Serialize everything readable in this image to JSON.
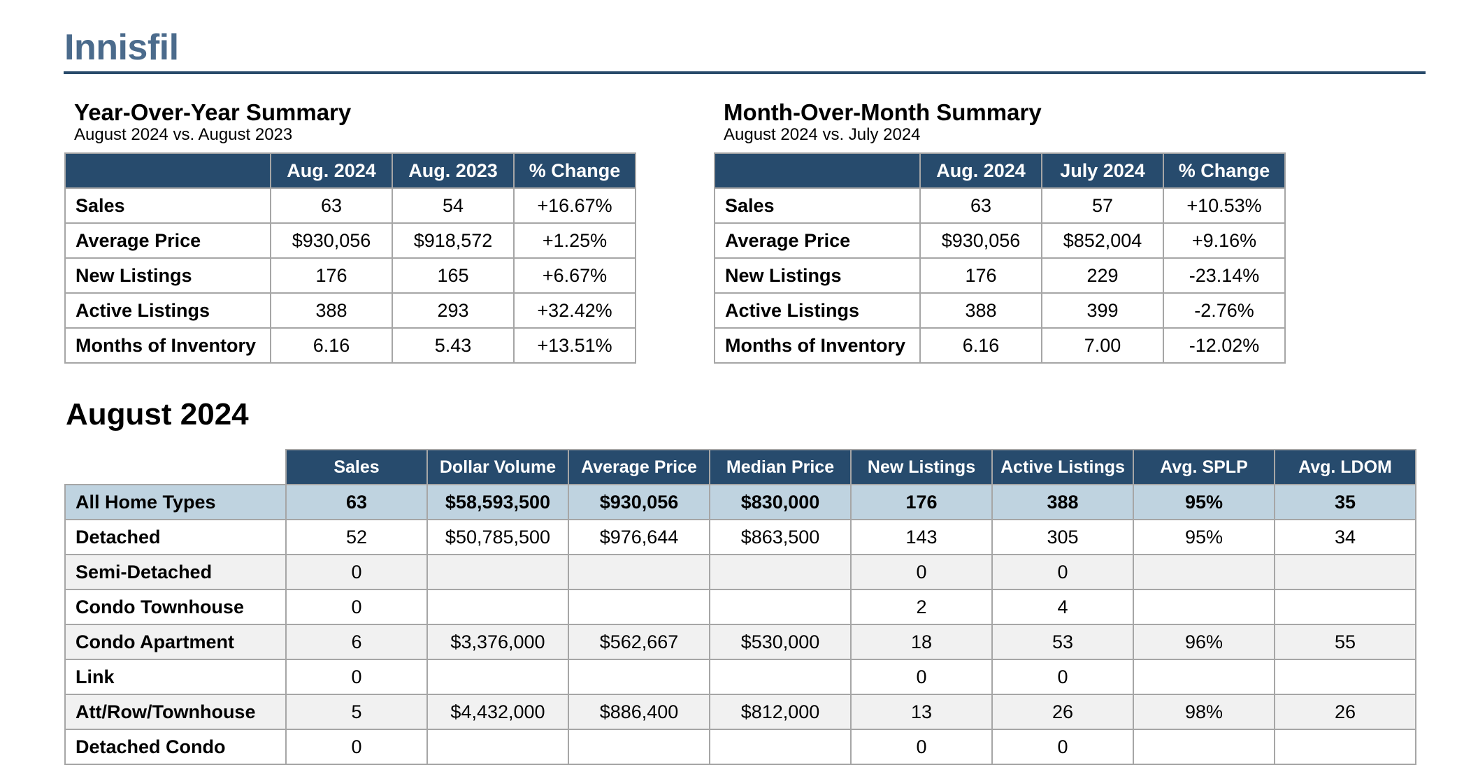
{
  "page": {
    "title": "Innisfil"
  },
  "yoy": {
    "heading": "Year-Over-Year Summary",
    "subheading": "August 2024 vs. August 2023",
    "columns": [
      "Aug. 2024",
      "Aug. 2023",
      "% Change"
    ],
    "rows": [
      {
        "label": "Sales",
        "values": [
          "63",
          "54",
          "+16.67%"
        ]
      },
      {
        "label": "Average Price",
        "values": [
          "$930,056",
          "$918,572",
          "+1.25%"
        ]
      },
      {
        "label": "New Listings",
        "values": [
          "176",
          "165",
          "+6.67%"
        ]
      },
      {
        "label": "Active Listings",
        "values": [
          "388",
          "293",
          "+32.42%"
        ]
      },
      {
        "label": "Months of Inventory",
        "values": [
          "6.16",
          "5.43",
          "+13.51%"
        ]
      }
    ]
  },
  "mom": {
    "heading": "Month-Over-Month Summary",
    "subheading": "August 2024 vs. July 2024",
    "columns": [
      "Aug. 2024",
      "July 2024",
      "% Change"
    ],
    "rows": [
      {
        "label": "Sales",
        "values": [
          "63",
          "57",
          "+10.53%"
        ]
      },
      {
        "label": "Average Price",
        "values": [
          "$930,056",
          "$852,004",
          "+9.16%"
        ]
      },
      {
        "label": "New Listings",
        "values": [
          "176",
          "229",
          "-23.14%"
        ]
      },
      {
        "label": "Active Listings",
        "values": [
          "388",
          "399",
          "-2.76%"
        ]
      },
      {
        "label": "Months of Inventory",
        "values": [
          "6.16",
          "7.00",
          "-12.02%"
        ]
      }
    ]
  },
  "month_section": {
    "title": "August 2024",
    "columns": [
      "Sales",
      "Dollar Volume",
      "Average Price",
      "Median Price",
      "New Listings",
      "Active Listings",
      "Avg. SPLP",
      "Avg. LDOM"
    ],
    "rows": [
      {
        "label": "All Home Types",
        "values": [
          "63",
          "$58,593,500",
          "$930,056",
          "$830,000",
          "176",
          "388",
          "95%",
          "35"
        ]
      },
      {
        "label": "Detached",
        "values": [
          "52",
          "$50,785,500",
          "$976,644",
          "$863,500",
          "143",
          "305",
          "95%",
          "34"
        ]
      },
      {
        "label": "Semi-Detached",
        "values": [
          "0",
          "",
          "",
          "",
          "0",
          "0",
          "",
          ""
        ]
      },
      {
        "label": "Condo Townhouse",
        "values": [
          "0",
          "",
          "",
          "",
          "2",
          "4",
          "",
          ""
        ]
      },
      {
        "label": "Condo Apartment",
        "values": [
          "6",
          "$3,376,000",
          "$562,667",
          "$530,000",
          "18",
          "53",
          "96%",
          "55"
        ]
      },
      {
        "label": "Link",
        "values": [
          "0",
          "",
          "",
          "",
          "0",
          "0",
          "",
          ""
        ]
      },
      {
        "label": "Att/Row/Townhouse",
        "values": [
          "5",
          "$4,432,000",
          "$886,400",
          "$812,000",
          "13",
          "26",
          "98%",
          "26"
        ]
      },
      {
        "label": "Detached Condo",
        "values": [
          "0",
          "",
          "",
          "",
          "0",
          "0",
          "",
          ""
        ]
      }
    ]
  }
}
